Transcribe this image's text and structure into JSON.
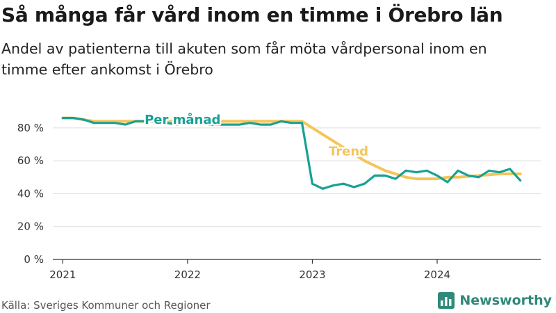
{
  "title": "Så många får vård inom en timme i Örebro län",
  "subtitle": "Andel av patienterna till akuten som får möta vårdpersonal inom en timme efter ankomst i Örebro",
  "source": "Källa: Sveriges Kommuner och Regioner",
  "brand": "Newsworthy",
  "brand_icon": "newsworthy-bar-chart-logo-icon",
  "colors": {
    "per_month": "#17a194",
    "trend": "#f5c558",
    "grid": "#dddddd",
    "axis": "#333333",
    "brand": "#2e8a78"
  },
  "chart_data": {
    "type": "line",
    "title": "Så många får vård inom en timme i Örebro län",
    "subtitle": "Andel av patienterna till akuten som får möta vårdpersonal inom en timme efter ankomst i Örebro",
    "xlabel": "",
    "ylabel": "",
    "x_ticks": [
      2021,
      2022,
      2023,
      2024
    ],
    "y_ticks": [
      0,
      20,
      40,
      60,
      80
    ],
    "y_tick_labels": [
      "0 %",
      "20 %",
      "40 %",
      "60 %",
      "80 %"
    ],
    "ylim": [
      0,
      85
    ],
    "xlim": [
      2020.92,
      2024.83
    ],
    "grid": true,
    "x": [
      "2021-01",
      "2021-02",
      "2021-03",
      "2021-04",
      "2021-05",
      "2021-06",
      "2021-07",
      "2021-08",
      "2021-09",
      "2021-10",
      "2021-11",
      "2021-12",
      "2022-01",
      "2022-02",
      "2022-03",
      "2022-04",
      "2022-05",
      "2022-06",
      "2022-07",
      "2022-08",
      "2022-09",
      "2022-10",
      "2022-11",
      "2022-12",
      "2023-01",
      "2023-02",
      "2023-03",
      "2023-04",
      "2023-05",
      "2023-06",
      "2023-07",
      "2023-08",
      "2023-09",
      "2023-10",
      "2023-11",
      "2023-12",
      "2024-01",
      "2024-02",
      "2024-03",
      "2024-04",
      "2024-05",
      "2024-06",
      "2024-07",
      "2024-08",
      "2024-09"
    ],
    "series": [
      {
        "name": "Per månad",
        "values": [
          86,
          86,
          85,
          83,
          83,
          83,
          82,
          84,
          84,
          84,
          83,
          82,
          83,
          83,
          82,
          82,
          82,
          82,
          83,
          82,
          82,
          84,
          83,
          83,
          46,
          43,
          45,
          46,
          44,
          46,
          51,
          51,
          49,
          54,
          53,
          54,
          51,
          47,
          54,
          51,
          50,
          54,
          53,
          55,
          48
        ]
      },
      {
        "name": "Trend",
        "values": [
          86,
          86,
          85,
          84,
          84,
          84,
          84,
          84,
          84,
          84,
          84,
          84,
          84,
          84,
          84,
          84,
          84,
          84,
          84,
          84,
          84,
          84,
          84,
          84,
          80,
          76,
          72,
          68,
          64,
          60,
          57,
          54,
          52,
          50,
          49,
          49,
          49,
          50,
          50,
          50.5,
          51,
          51.5,
          52,
          52,
          52
        ]
      }
    ]
  }
}
